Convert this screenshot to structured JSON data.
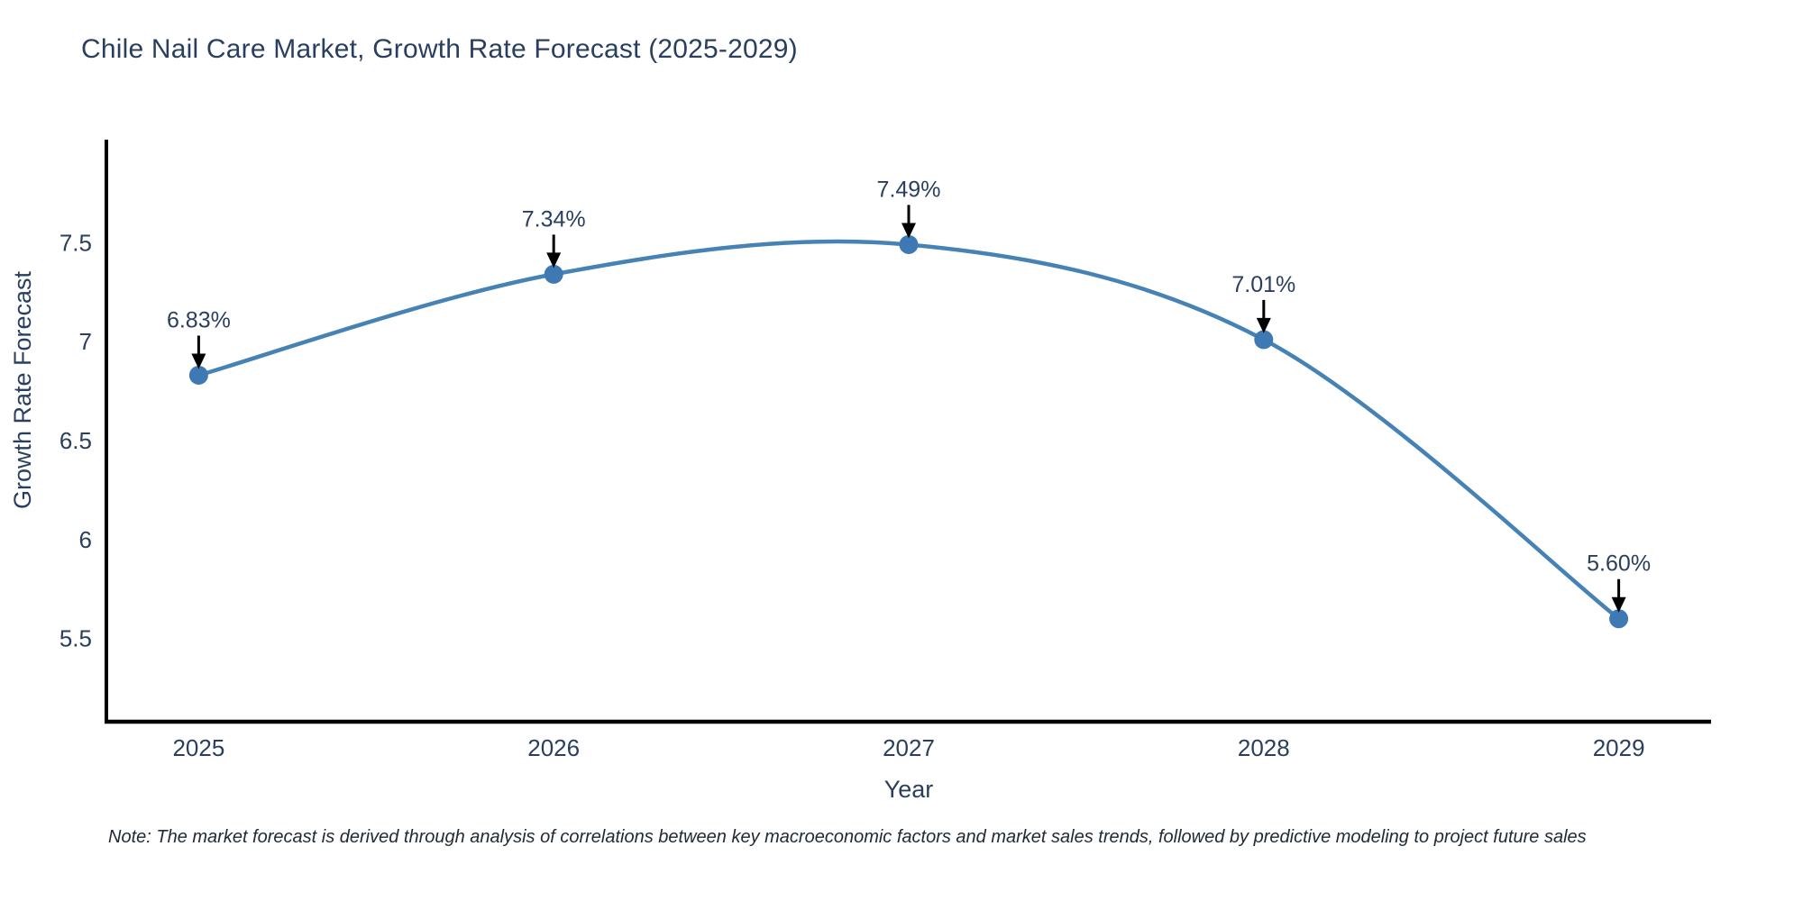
{
  "title": "Chile Nail Care Market, Growth Rate Forecast (2025-2029)",
  "note": "Note: The market forecast is derived through analysis of correlations between key macroeconomic factors and market sales trends, followed by predictive modeling to project future sales",
  "chart_data": {
    "type": "line",
    "title": "Chile Nail Care Market, Growth Rate Forecast (2025-2029)",
    "xlabel": "Year",
    "ylabel": "Growth Rate Forecast",
    "categories": [
      2025,
      2026,
      2027,
      2028,
      2029
    ],
    "values": [
      6.83,
      7.34,
      7.49,
      7.01,
      5.6
    ],
    "point_labels": [
      "6.83%",
      "7.34%",
      "7.49%",
      "7.01%",
      "5.60%"
    ],
    "y_ticks": [
      5.5,
      6,
      6.5,
      7,
      7.5
    ],
    "y_tick_labels": [
      "5.5",
      "6",
      "6.5",
      "7",
      "7.5"
    ],
    "x_tick_labels": [
      "2025",
      "2026",
      "2027",
      "2028",
      "2029"
    ],
    "xlim": [
      2024.74,
      2029.26
    ],
    "ylim": [
      5.08,
      8.02
    ],
    "grid": false,
    "legend": "none",
    "line_shape": "spline",
    "colors": {
      "line": "#4682B4",
      "marker": "#3E79B4",
      "axis": "#000000",
      "tick_text": "#2a3f5f",
      "title_text": "#2a3f5f",
      "annotation_text": "#2a3f5f",
      "arrow": "#000000",
      "background": "#ffffff"
    }
  }
}
